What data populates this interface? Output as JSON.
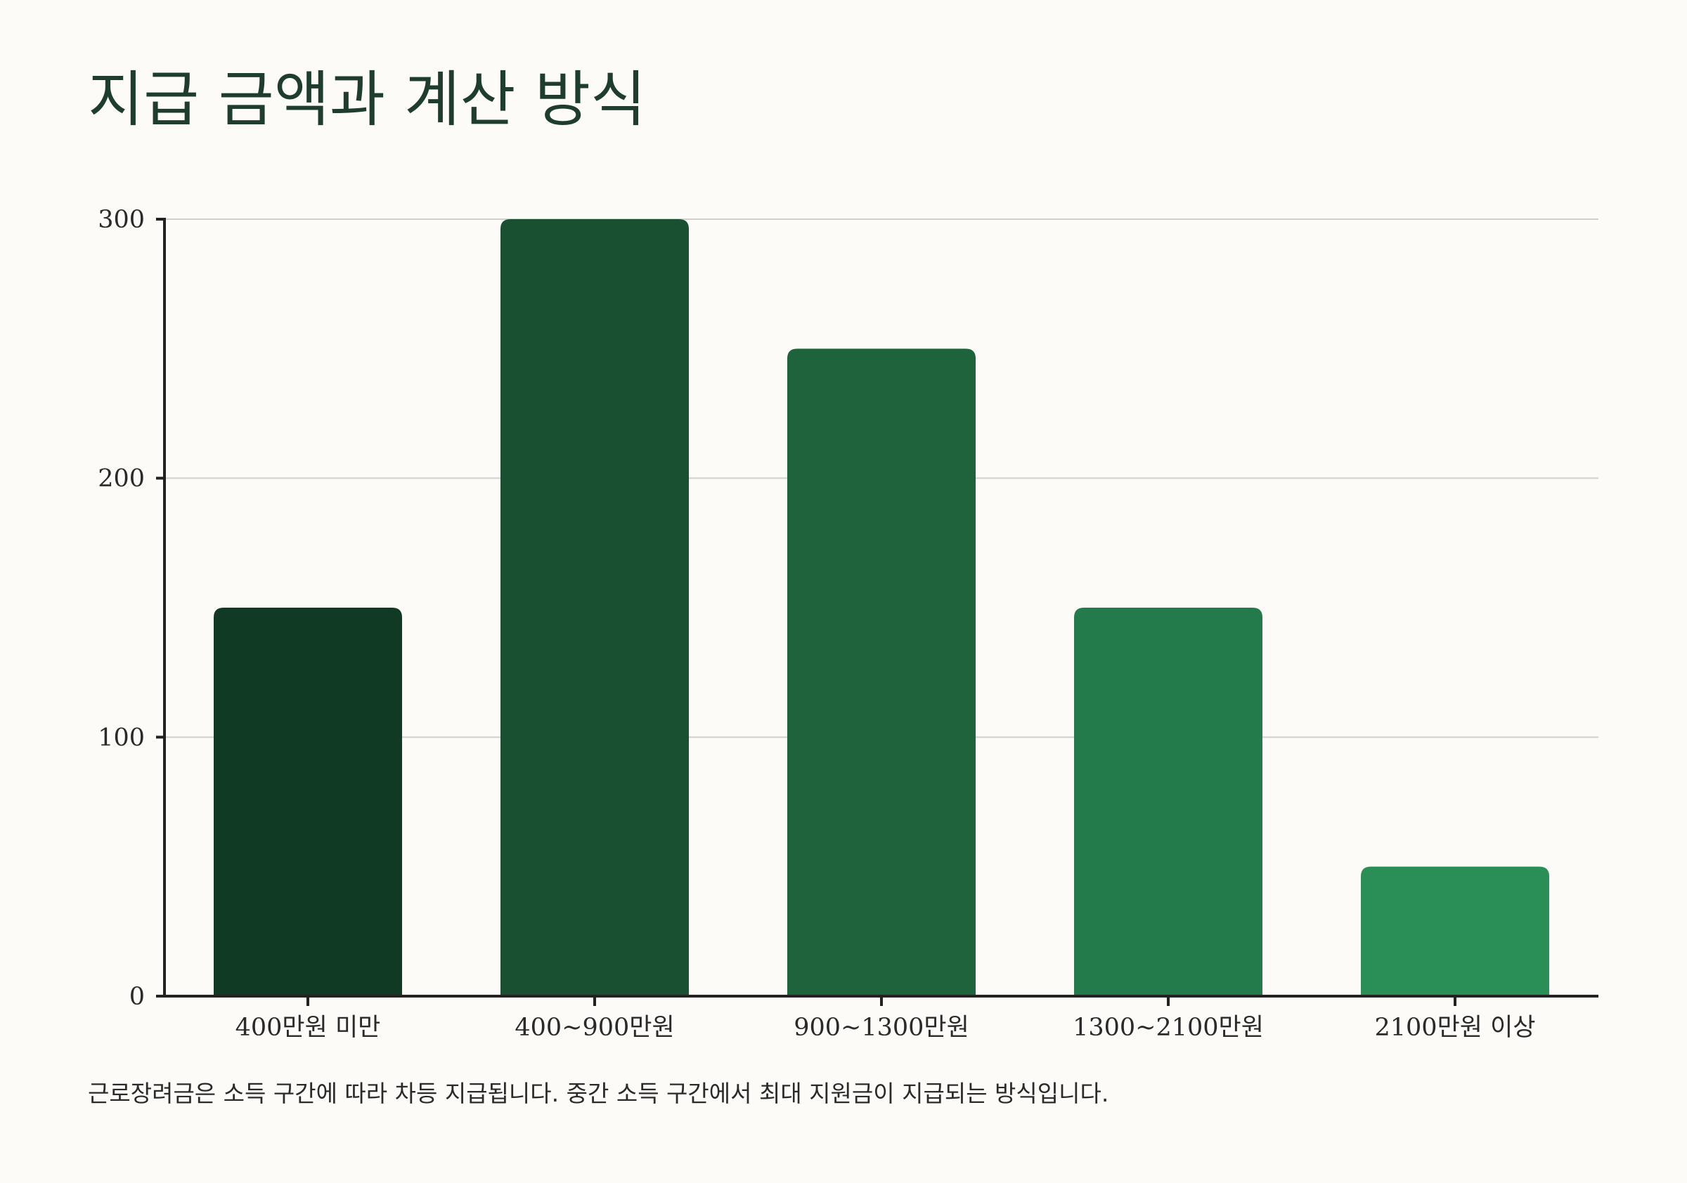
{
  "page": {
    "title": "지급 금액과 계산 방식",
    "caption": "근로장려금은 소득 구간에 따라 차등 지급됩니다. 중간 소득 구간에서 최대 지원금이 지급되는 방식입니다."
  },
  "chart_data": {
    "type": "bar",
    "categories": [
      "400만원 미만",
      "400~900만원",
      "900~1300만원",
      "1300~2100만원",
      "2100만원 이상"
    ],
    "values": [
      150,
      300,
      250,
      150,
      50
    ],
    "ylim": [
      0,
      300
    ],
    "yticks": [
      0,
      100,
      200,
      300
    ],
    "grid": true,
    "legend": "none",
    "colors": [
      "#113a25",
      "#195032",
      "#1d643d",
      "#237a4a",
      "#2a8e57"
    ],
    "axis_color": "#222222",
    "grid_color": "#cfcfcf"
  }
}
